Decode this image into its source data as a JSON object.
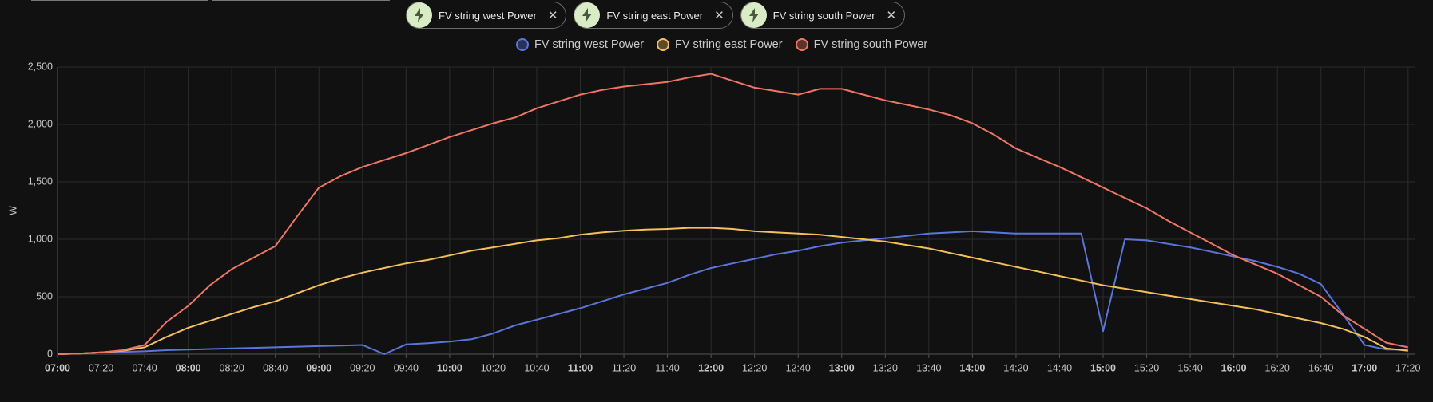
{
  "chart_data": {
    "type": "line",
    "series": [
      {
        "name": "FV string west Power",
        "color": "#5a76dc",
        "values": [
          0,
          5,
          15,
          20,
          25,
          35,
          40,
          45,
          50,
          55,
          60,
          65,
          70,
          75,
          80,
          0,
          85,
          95,
          110,
          130,
          180,
          250,
          300,
          350,
          400,
          460,
          520,
          570,
          620,
          690,
          750,
          790,
          830,
          870,
          900,
          940,
          970,
          990,
          1010,
          1030,
          1050,
          1060,
          1070,
          1060,
          1050,
          1050,
          1050,
          1050,
          200,
          1000,
          990,
          960,
          930,
          890,
          850,
          810,
          760,
          700,
          610,
          350,
          80,
          40,
          40
        ]
      },
      {
        "name": "FV string east Power",
        "color": "#f4c05c",
        "values": [
          0,
          5,
          15,
          30,
          60,
          150,
          230,
          290,
          350,
          410,
          460,
          530,
          600,
          660,
          710,
          750,
          790,
          820,
          860,
          900,
          930,
          960,
          990,
          1010,
          1040,
          1060,
          1075,
          1085,
          1090,
          1100,
          1100,
          1090,
          1070,
          1060,
          1050,
          1040,
          1020,
          1000,
          980,
          950,
          920,
          880,
          840,
          800,
          760,
          720,
          680,
          640,
          600,
          570,
          540,
          510,
          480,
          450,
          420,
          390,
          350,
          310,
          270,
          220,
          150,
          50,
          30
        ]
      },
      {
        "name": "FV string south Power",
        "color": "#f07564",
        "values": [
          0,
          5,
          15,
          35,
          80,
          280,
          420,
          600,
          740,
          840,
          940,
          1200,
          1450,
          1550,
          1630,
          1690,
          1750,
          1820,
          1890,
          1950,
          2010,
          2060,
          2140,
          2200,
          2260,
          2300,
          2330,
          2350,
          2370,
          2410,
          2440,
          2380,
          2320,
          2290,
          2260,
          2310,
          2310,
          2260,
          2210,
          2170,
          2130,
          2080,
          2010,
          1910,
          1790,
          1710,
          1630,
          1540,
          1450,
          1360,
          1270,
          1160,
          1060,
          960,
          860,
          780,
          700,
          600,
          500,
          340,
          220,
          100,
          60
        ]
      }
    ],
    "x": [
      "07:00",
      "07:10",
      "07:20",
      "07:30",
      "07:40",
      "07:50",
      "08:00",
      "08:10",
      "08:20",
      "08:30",
      "08:40",
      "08:50",
      "09:00",
      "09:10",
      "09:20",
      "09:30",
      "09:40",
      "09:50",
      "10:00",
      "10:10",
      "10:20",
      "10:30",
      "10:40",
      "10:50",
      "11:00",
      "11:10",
      "11:20",
      "11:30",
      "11:40",
      "11:50",
      "12:00",
      "12:10",
      "12:20",
      "12:30",
      "12:40",
      "12:50",
      "13:00",
      "13:10",
      "13:20",
      "13:30",
      "13:40",
      "13:50",
      "14:00",
      "14:10",
      "14:20",
      "14:30",
      "14:40",
      "14:50",
      "15:00",
      "15:10",
      "15:20",
      "15:30",
      "15:40",
      "15:50",
      "16:00",
      "16:10",
      "16:20",
      "16:30",
      "16:40",
      "16:50",
      "17:00",
      "17:10",
      "17:20"
    ],
    "xlim": [
      "07:00",
      "17:23"
    ],
    "xticks": [
      "07:00",
      "07:20",
      "07:40",
      "08:00",
      "08:20",
      "08:40",
      "09:00",
      "09:20",
      "09:40",
      "10:00",
      "10:20",
      "10:40",
      "11:00",
      "11:20",
      "11:40",
      "12:00",
      "12:20",
      "12:40",
      "13:00",
      "13:20",
      "13:40",
      "14:00",
      "14:20",
      "14:40",
      "15:00",
      "15:20",
      "15:40",
      "16:00",
      "16:20",
      "16:40",
      "17:00",
      "17:20"
    ],
    "ylabel": "W",
    "ylim": [
      0,
      2500
    ],
    "yticks": [
      0,
      500,
      {
        "value": 1000,
        "label": "1,000"
      },
      {
        "value": 1500,
        "label": "1,500"
      },
      {
        "value": 2000,
        "label": "2,000"
      },
      {
        "value": 2500,
        "label": "2,500"
      }
    ],
    "grid": true,
    "legend": "top"
  }
}
